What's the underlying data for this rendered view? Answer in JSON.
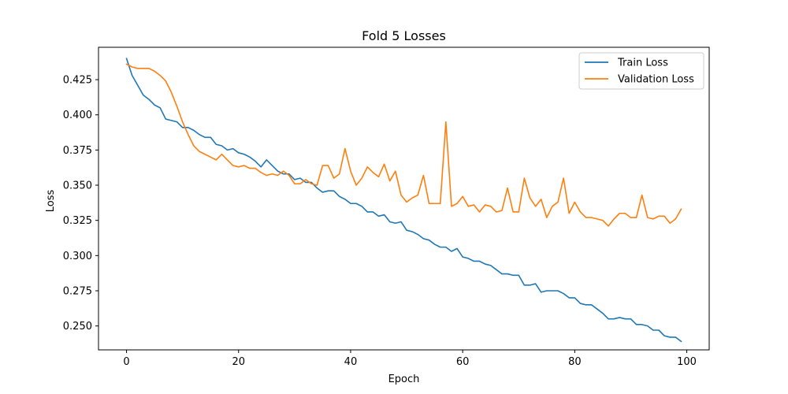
{
  "chart_data": {
    "type": "line",
    "title": "Fold 5 Losses",
    "xlabel": "Epoch",
    "ylabel": "Loss",
    "xlim": [
      -5,
      104
    ],
    "ylim": [
      0.233,
      0.448
    ],
    "xticks": [
      0,
      20,
      40,
      60,
      80,
      100
    ],
    "xtick_labels": [
      "0",
      "20",
      "40",
      "60",
      "80",
      "100"
    ],
    "yticks": [
      0.25,
      0.275,
      0.3,
      0.325,
      0.35,
      0.375,
      0.4,
      0.425
    ],
    "ytick_labels": [
      "0.250",
      "0.275",
      "0.300",
      "0.325",
      "0.350",
      "0.375",
      "0.400",
      "0.425"
    ],
    "grid": false,
    "legend_position": "top-right",
    "x": [
      0,
      1,
      2,
      3,
      4,
      5,
      6,
      7,
      8,
      9,
      10,
      11,
      12,
      13,
      14,
      15,
      16,
      17,
      18,
      19,
      20,
      21,
      22,
      23,
      24,
      25,
      26,
      27,
      28,
      29,
      30,
      31,
      32,
      33,
      34,
      35,
      36,
      37,
      38,
      39,
      40,
      41,
      42,
      43,
      44,
      45,
      46,
      47,
      48,
      49,
      50,
      51,
      52,
      53,
      54,
      55,
      56,
      57,
      58,
      59,
      60,
      61,
      62,
      63,
      64,
      65,
      66,
      67,
      68,
      69,
      70,
      71,
      72,
      73,
      74,
      75,
      76,
      77,
      78,
      79,
      80,
      81,
      82,
      83,
      84,
      85,
      86,
      87,
      88,
      89,
      90,
      91,
      92,
      93,
      94,
      95,
      96,
      97,
      98,
      99
    ],
    "series": [
      {
        "name": "Train Loss",
        "color": "#1f77b4",
        "values": [
          0.44,
          0.428,
          0.421,
          0.414,
          0.411,
          0.407,
          0.405,
          0.397,
          0.396,
          0.395,
          0.391,
          0.391,
          0.389,
          0.386,
          0.384,
          0.384,
          0.379,
          0.378,
          0.375,
          0.376,
          0.373,
          0.372,
          0.37,
          0.367,
          0.363,
          0.368,
          0.364,
          0.36,
          0.358,
          0.358,
          0.354,
          0.355,
          0.352,
          0.352,
          0.348,
          0.345,
          0.346,
          0.346,
          0.342,
          0.34,
          0.337,
          0.337,
          0.335,
          0.331,
          0.331,
          0.328,
          0.329,
          0.324,
          0.323,
          0.324,
          0.318,
          0.317,
          0.315,
          0.312,
          0.311,
          0.308,
          0.306,
          0.306,
          0.303,
          0.305,
          0.299,
          0.298,
          0.296,
          0.296,
          0.294,
          0.293,
          0.29,
          0.287,
          0.287,
          0.286,
          0.286,
          0.279,
          0.279,
          0.28,
          0.274,
          0.275,
          0.275,
          0.275,
          0.273,
          0.27,
          0.27,
          0.266,
          0.265,
          0.265,
          0.262,
          0.259,
          0.255,
          0.255,
          0.256,
          0.255,
          0.255,
          0.251,
          0.251,
          0.25,
          0.247,
          0.247,
          0.243,
          0.242,
          0.242,
          0.239
        ]
      },
      {
        "name": "Validation Loss",
        "color": "#ff7f0e",
        "values": [
          0.436,
          0.434,
          0.433,
          0.433,
          0.433,
          0.431,
          0.428,
          0.424,
          0.416,
          0.406,
          0.395,
          0.386,
          0.378,
          0.374,
          0.372,
          0.37,
          0.368,
          0.372,
          0.368,
          0.364,
          0.363,
          0.364,
          0.362,
          0.362,
          0.359,
          0.357,
          0.358,
          0.357,
          0.36,
          0.357,
          0.351,
          0.351,
          0.354,
          0.351,
          0.35,
          0.364,
          0.364,
          0.355,
          0.358,
          0.376,
          0.36,
          0.35,
          0.355,
          0.363,
          0.359,
          0.356,
          0.365,
          0.353,
          0.36,
          0.343,
          0.338,
          0.341,
          0.343,
          0.357,
          0.337,
          0.337,
          0.337,
          0.395,
          0.335,
          0.337,
          0.342,
          0.335,
          0.336,
          0.331,
          0.336,
          0.335,
          0.331,
          0.332,
          0.348,
          0.331,
          0.331,
          0.355,
          0.341,
          0.335,
          0.34,
          0.327,
          0.335,
          0.338,
          0.355,
          0.33,
          0.338,
          0.331,
          0.327,
          0.327,
          0.326,
          0.325,
          0.321,
          0.326,
          0.33,
          0.33,
          0.327,
          0.327,
          0.343,
          0.327,
          0.326,
          0.328,
          0.328,
          0.323,
          0.326,
          0.333
        ]
      }
    ]
  }
}
